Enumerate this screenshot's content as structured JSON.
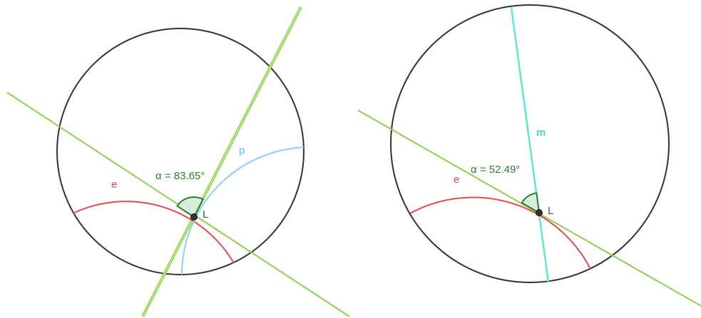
{
  "panels": [
    {
      "angle_label": "α = 83.65°",
      "arc_label": "e",
      "second_label": "p",
      "point_label": "L"
    },
    {
      "angle_label": "α = 52.49°",
      "arc_label": "e",
      "second_label": "m",
      "point_label": "L"
    }
  ]
}
